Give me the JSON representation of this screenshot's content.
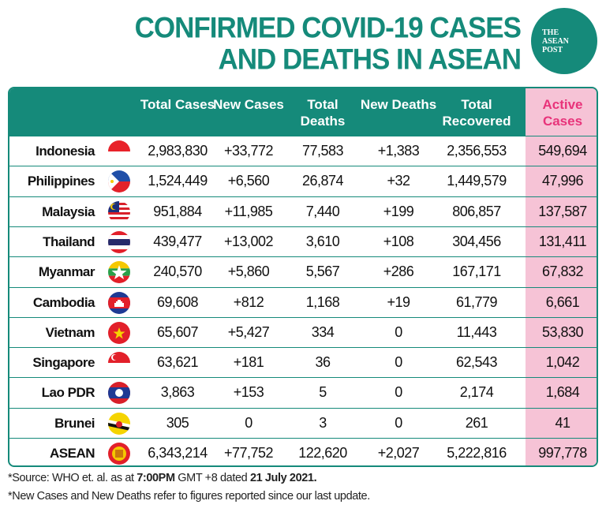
{
  "title": {
    "line1": "CONFIRMED COVID-19 CASES",
    "line2": "AND DEATHS IN ASEAN"
  },
  "logo": {
    "text": [
      "THE",
      "ASEAN",
      "POST"
    ]
  },
  "colors": {
    "teal": "#158a7a",
    "pink": "#f6c3d6",
    "active_header": "#e8337a"
  },
  "columns": [
    "Total Cases",
    "New Cases",
    "Total Deaths",
    "New Deaths",
    "Total Recovered",
    "Active Cases"
  ],
  "rows": [
    {
      "country": "Indonesia",
      "flag": "indonesia-flag-icon",
      "values": [
        "2,983,830",
        "+33,772",
        "77,583",
        "+1,383",
        "2,356,553",
        "549,694"
      ]
    },
    {
      "country": "Philippines",
      "flag": "philippines-flag-icon",
      "values": [
        "1,524,449",
        "+6,560",
        "26,874",
        "+32",
        "1,449,579",
        "47,996"
      ]
    },
    {
      "country": "Malaysia",
      "flag": "malaysia-flag-icon",
      "values": [
        "951,884",
        "+11,985",
        "7,440",
        "+199",
        "806,857",
        "137,587"
      ]
    },
    {
      "country": "Thailand",
      "flag": "thailand-flag-icon",
      "values": [
        "439,477",
        "+13,002",
        "3,610",
        "+108",
        "304,456",
        "131,411"
      ]
    },
    {
      "country": "Myanmar",
      "flag": "myanmar-flag-icon",
      "values": [
        "240,570",
        "+5,860",
        "5,567",
        "+286",
        "167,171",
        "67,832"
      ]
    },
    {
      "country": "Cambodia",
      "flag": "cambodia-flag-icon",
      "values": [
        "69,608",
        "+812",
        "1,168",
        "+19",
        "61,779",
        "6,661"
      ]
    },
    {
      "country": "Vietnam",
      "flag": "vietnam-flag-icon",
      "values": [
        "65,607",
        "+5,427",
        "334",
        "0",
        "11,443",
        "53,830"
      ]
    },
    {
      "country": "Singapore",
      "flag": "singapore-flag-icon",
      "values": [
        "63,621",
        "+181",
        "36",
        "0",
        "62,543",
        "1,042"
      ]
    },
    {
      "country": "Lao PDR",
      "flag": "laos-flag-icon",
      "values": [
        "3,863",
        "+153",
        "5",
        "0",
        "2,174",
        "1,684"
      ]
    },
    {
      "country": "Brunei",
      "flag": "brunei-flag-icon",
      "values": [
        "305",
        "0",
        "3",
        "0",
        "261",
        "41"
      ]
    },
    {
      "country": "ASEAN",
      "flag": "asean-flag-icon",
      "values": [
        "6,343,214",
        "+77,752",
        "122,620",
        "+2,027",
        "5,222,816",
        "997,778"
      ]
    }
  ],
  "footnotes": {
    "source_prefix": "*Source: WHO et. al. as at ",
    "time": "7:00PM",
    "source_mid": " GMT +8 dated ",
    "date": "21 July 2021.",
    "note": "*New Cases and New Deaths refer to figures reported since our last update."
  }
}
